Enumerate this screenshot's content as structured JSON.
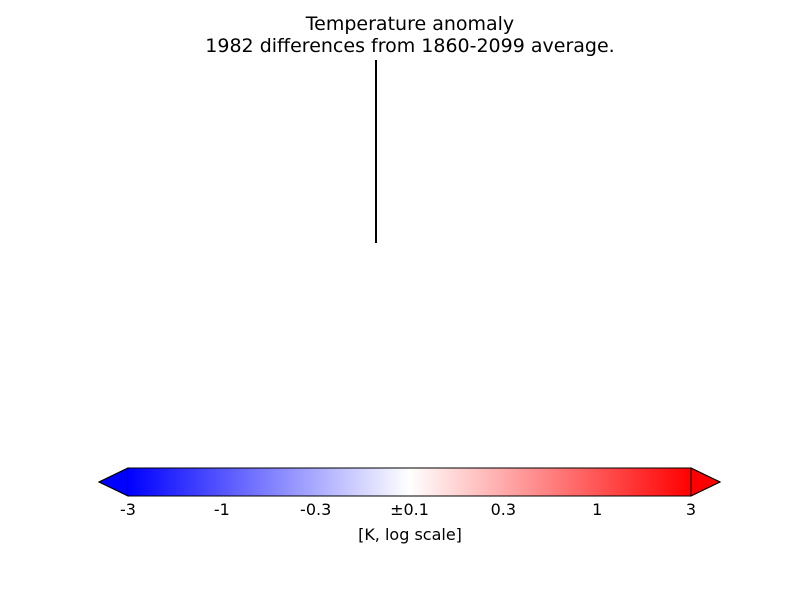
{
  "chart_data": {
    "type": "heatmap",
    "title": "Temperature anomaly",
    "subtitle": "1982 differences from 1860-2099 average.",
    "colorbar": {
      "label": "[K, log scale]",
      "ticks": [
        "-3",
        "-1",
        "-0.3",
        "±0.1",
        "0.3",
        "1",
        "3"
      ],
      "colormap": [
        "#0000ff",
        "#ffffff",
        "#ff0000"
      ],
      "extend": "both",
      "orientation": "horizontal"
    }
  }
}
